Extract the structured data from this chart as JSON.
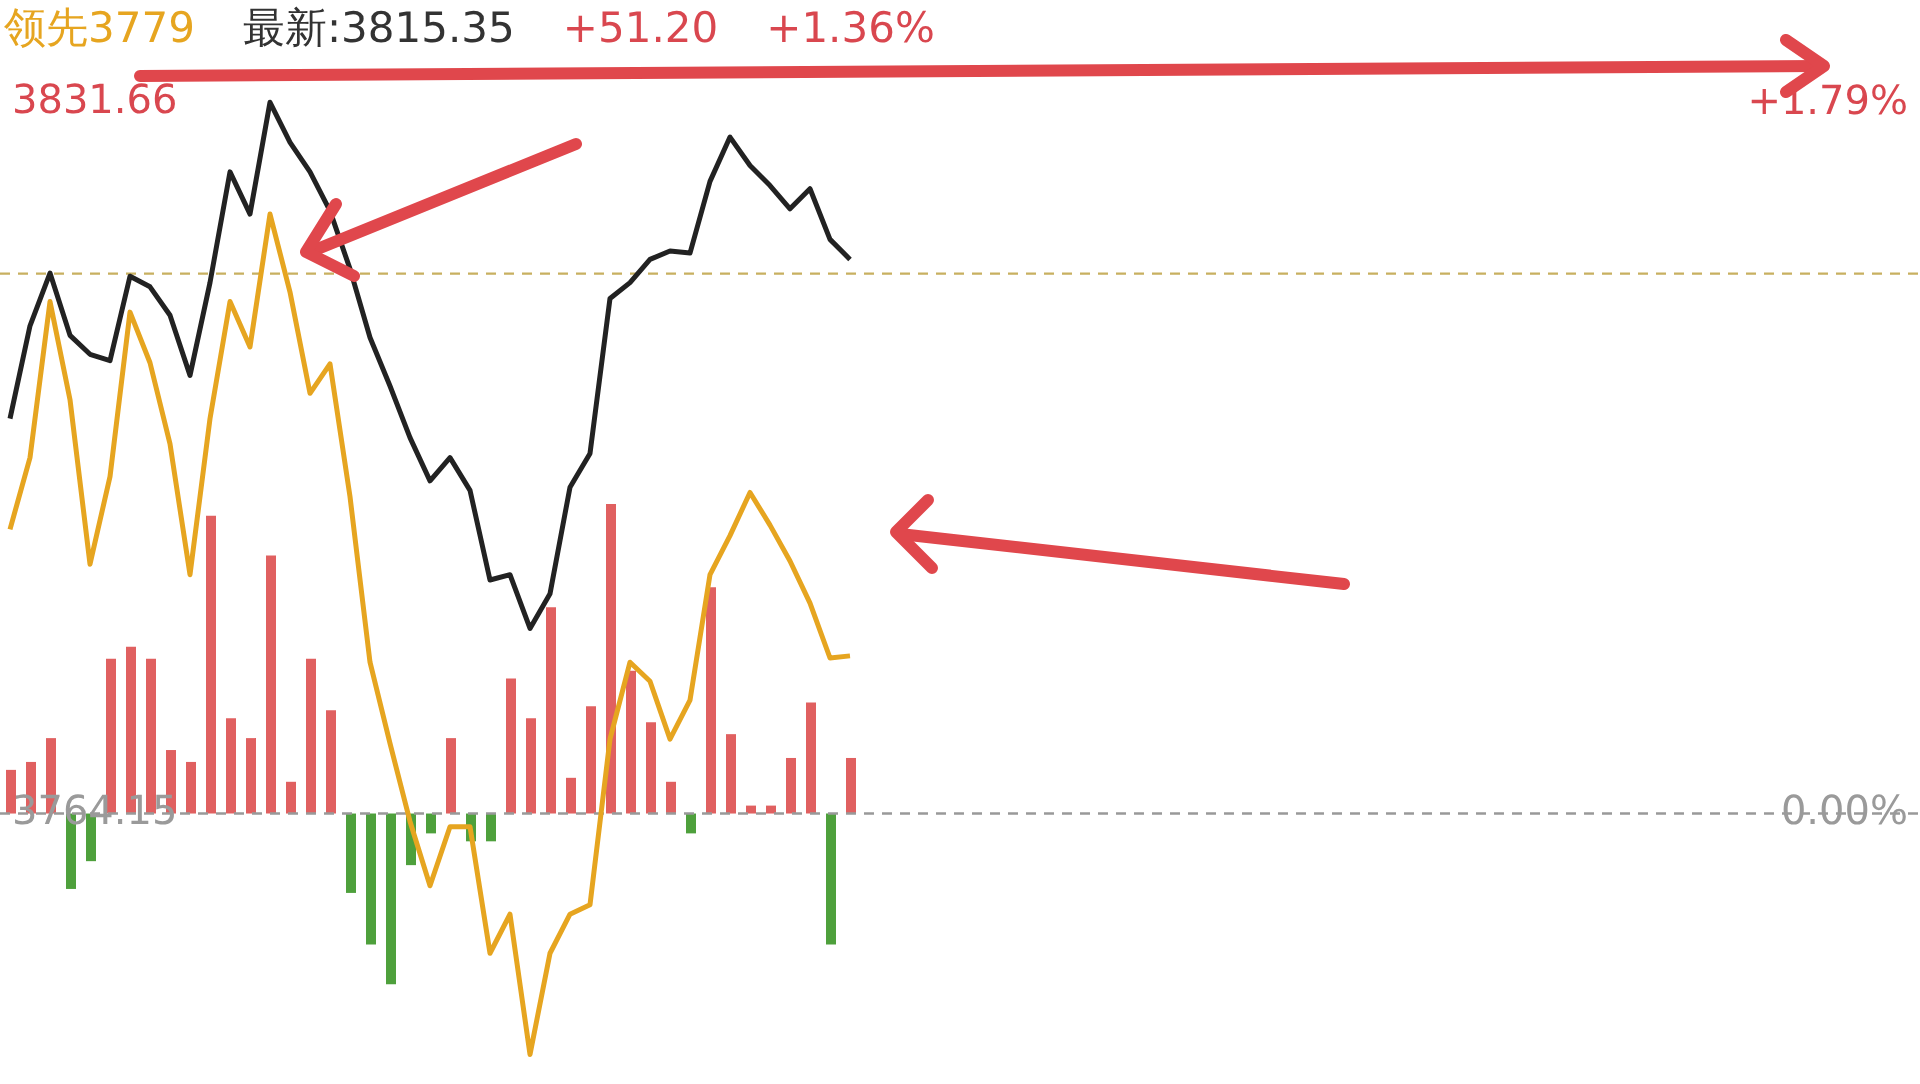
{
  "chart_data": {
    "type": "line",
    "annotations": [
      "领先3779",
      "最新:3815.35",
      "+51.20",
      "+1.36%"
    ],
    "categories": [
      null,
      null,
      null,
      null,
      null,
      null,
      null,
      null,
      null,
      null,
      null,
      null,
      null,
      null,
      null,
      null,
      null,
      null,
      null,
      null,
      null,
      null,
      null,
      null,
      null,
      null,
      null,
      null,
      null,
      null,
      null,
      null,
      null,
      null,
      null,
      null,
      null,
      null,
      null,
      null,
      null,
      null,
      null,
      null,
      null,
      null,
      null,
      null,
      null,
      null,
      null,
      null,
      null,
      null,
      null,
      null,
      null,
      null,
      null,
      null,
      null,
      null,
      null,
      null,
      null,
      null,
      null,
      null,
      null,
      null,
      null,
      null,
      null,
      null,
      null,
      null,
      null,
      null,
      null,
      null,
      null,
      null,
      null,
      null,
      null,
      null,
      null,
      null,
      null,
      null,
      null,
      null,
      null,
      null,
      null,
      null
    ],
    "series": [
      {
        "type": "bar",
        "axis": "y2",
        "values": [
          0.11,
          0.13,
          0.19,
          -0.19,
          -0.12,
          0.39,
          0.42,
          0.39,
          0.16,
          0.13,
          0.75,
          0.24,
          0.19,
          0.65,
          0.08,
          0.39,
          0.26,
          -0.2,
          -0.33,
          -0.43,
          -0.13,
          -0.05,
          0.19,
          -0.07,
          -0.07,
          0.34,
          0.24,
          0.52,
          0.09,
          0.27,
          0.78,
          0.36,
          0.23,
          0.08,
          -0.05,
          0.57,
          0.2,
          0.02,
          0.02,
          0.14,
          0.28,
          -0.33,
          0.14,
          null,
          null,
          null,
          null,
          null,
          null,
          null,
          null,
          null,
          null,
          null,
          null,
          null,
          null,
          null,
          null,
          null,
          null,
          null,
          null,
          null,
          null,
          null,
          null,
          null,
          null,
          null,
          null,
          null,
          null,
          null,
          null,
          null,
          null,
          null,
          null,
          null,
          null,
          null,
          null,
          null,
          null,
          null,
          null,
          null,
          null,
          null,
          null,
          null,
          null,
          null,
          null,
          null
        ],
        "colors": [
          "#e06060",
          "#e06060",
          "#e06060",
          "#4ea03c",
          "#4ea03c",
          "#e06060",
          "#e06060",
          "#e06060",
          "#e06060",
          "#e06060",
          "#e06060",
          "#e06060",
          "#e06060",
          "#e06060",
          "#e06060",
          "#e06060",
          "#e06060",
          "#4ea03c",
          "#4ea03c",
          "#4ea03c",
          "#4ea03c",
          "#4ea03c",
          "#e06060",
          "#4ea03c",
          "#4ea03c",
          "#e06060",
          "#e06060",
          "#e06060",
          "#e06060",
          "#e06060",
          "#e06060",
          "#e06060",
          "#e06060",
          "#e06060",
          "#4ea03c",
          "#e06060",
          "#e06060",
          "#e06060",
          "#e06060",
          "#e06060",
          "#e06060",
          "#4ea03c",
          "#e06060",
          null,
          null,
          null,
          null,
          null,
          null,
          null,
          null,
          null,
          null,
          null,
          null,
          null,
          null,
          null,
          null,
          null,
          null,
          null,
          null,
          null,
          null,
          null,
          null,
          null,
          null,
          null,
          null,
          null,
          null,
          null,
          null,
          null,
          null,
          null,
          null,
          null,
          null,
          null,
          null,
          null,
          null,
          null,
          null,
          null,
          null,
          null,
          null,
          null,
          null,
          null,
          null,
          null
        ]
      },
      {
        "color": "#e6a520",
        "values": [
          3791.1,
          3797.9,
          3812.7,
          3803.4,
          3787.8,
          3796.1,
          3811.7,
          3806.9,
          3799.2,
          3786.8,
          3801.6,
          3812.7,
          3808.4,
          3821.0,
          3813.6,
          3804.0,
          3806.8,
          3794.2,
          3778.5,
          3770.8,
          3763.4,
          3757.3,
          3762.9,
          3762.9,
          3750.9,
          3754.6,
          3741.3,
          3750.9,
          3754.6,
          3755.5,
          3771.2,
          3778.5,
          3776.7,
          3771.2,
          3774.9,
          3786.8,
          3790.5,
          3794.6,
          3791.5,
          3788.1,
          3784.1,
          3778.9,
          3779.1,
          null,
          null,
          null,
          null,
          null,
          null,
          null,
          null,
          null,
          null,
          null,
          null,
          null,
          null,
          null,
          null,
          null,
          null,
          null,
          null,
          null,
          null,
          null,
          null,
          null,
          null,
          null,
          null,
          null,
          null,
          null,
          null,
          null,
          null,
          null,
          null,
          null,
          null,
          null,
          null,
          null,
          null,
          null,
          null,
          null,
          null,
          null,
          null,
          null,
          null,
          null,
          null,
          null
        ]
      },
      {
        "color": "#222222",
        "values": [
          3801.6,
          3810.4,
          3815.4,
          3809.5,
          3807.7,
          3807.1,
          3815.1,
          3814.1,
          3811.4,
          3805.7,
          3814.5,
          3825.0,
          3821.0,
          3831.6,
          3827.8,
          3825.0,
          3821.3,
          3815.8,
          3809.3,
          3804.7,
          3799.8,
          3795.7,
          3797.9,
          3794.8,
          3786.3,
          3786.8,
          3781.7,
          3785.0,
          3795.1,
          3798.3,
          3813.0,
          3814.5,
          3816.7,
          3817.5,
          3817.3,
          3824.1,
          3828.3,
          3825.6,
          3823.7,
          3821.5,
          3823.4,
          3818.6,
          3816.7,
          null,
          null,
          null,
          null,
          null,
          null,
          null,
          null,
          null,
          null,
          null,
          null,
          null,
          null,
          null,
          null,
          null,
          null,
          null,
          null,
          null,
          null,
          null,
          null,
          null,
          null,
          null,
          null,
          null,
          null,
          null,
          null,
          null,
          null,
          null,
          null,
          null,
          null,
          null,
          null,
          null,
          null,
          null,
          null,
          null,
          null,
          null,
          null,
          null,
          null,
          null,
          null,
          null
        ]
      }
    ],
    "ylim": [
      3738.5,
      3841.3
    ],
    "yticks": [
      3764.15,
      3831.66
    ],
    "y2lim": [
      -0.6814,
      2.0496
    ],
    "y2ticks": [
      {
        "value": 0,
        "label": "0.00%"
      },
      {
        "value": 1.79,
        "label": "+1.79%"
      }
    ],
    "ref_lines": [
      {
        "axis": "y",
        "value": 3815.35,
        "color": "#c8b060",
        "line_style": "dashed"
      },
      {
        "axis": "y",
        "value": 3764.15,
        "color": "#999999",
        "line_style": "dashed"
      }
    ]
  }
}
